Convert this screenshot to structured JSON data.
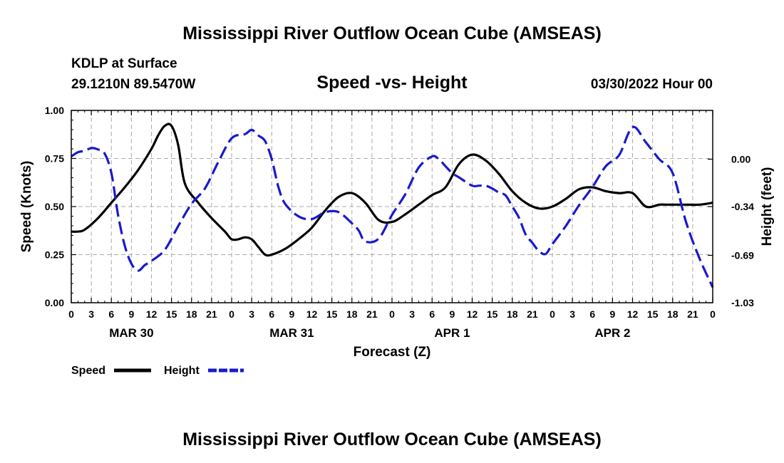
{
  "chart_data": {
    "type": "line",
    "title": "Mississippi River Outflow Ocean Cube (AMSEAS)",
    "footer_title": "Mississippi River Outflow Ocean Cube (AMSEAS)",
    "station": "KDLP at Surface",
    "location": "29.1210N  89.5470W",
    "subtitle": "Speed -vs- Height",
    "run_time": "03/30/2022 Hour 00",
    "xlabel": "Forecast (Z)",
    "ylabel_left": "Speed (Knots)",
    "ylabel_right": "Height (feet)",
    "x_range_hours": [
      0,
      96
    ],
    "ylim_left": [
      0,
      1.0
    ],
    "ylim_right": [
      -1.03,
      0.35
    ],
    "yticks_left": [
      "0.00",
      "0.25",
      "0.50",
      "0.75",
      "1.00"
    ],
    "yticks_right": [
      "-1.03",
      "-0.69",
      "-0.34",
      "0.00"
    ],
    "yticks_right_values": [
      -1.03,
      -0.69,
      -0.34,
      0.0
    ],
    "xtick_labels": [
      "0",
      "3",
      "6",
      "9",
      "12",
      "15",
      "18",
      "21",
      "0",
      "3",
      "6",
      "9",
      "12",
      "15",
      "18",
      "21",
      "0",
      "3",
      "6",
      "9",
      "12",
      "15",
      "18",
      "21",
      "0",
      "3",
      "6",
      "9",
      "12",
      "15",
      "18",
      "21",
      "0"
    ],
    "date_labels": [
      {
        "label": "MAR 30",
        "hour": 9
      },
      {
        "label": "MAR 31",
        "hour": 33
      },
      {
        "label": "APR 1",
        "hour": 57
      },
      {
        "label": "APR 2",
        "hour": 81
      }
    ],
    "grid": true,
    "legend": [
      {
        "name": "Speed",
        "color": "#000000",
        "style": "solid"
      },
      {
        "name": "Height",
        "color": "#1a1acc",
        "style": "dashed"
      }
    ],
    "series": [
      {
        "name": "Speed",
        "axis": "left",
        "color": "#000000",
        "x": [
          0,
          1,
          2,
          4,
          6,
          8,
          10,
          12,
          13,
          14,
          15,
          16,
          17,
          19,
          21,
          23,
          24,
          25,
          26,
          27,
          28,
          29,
          30,
          32,
          34,
          36,
          38,
          40,
          42,
          44,
          46,
          48,
          50,
          52,
          54,
          56,
          58,
          60,
          62,
          64,
          66,
          68,
          70,
          72,
          74,
          76,
          78,
          80,
          82,
          84,
          86,
          88,
          89,
          90,
          92,
          94,
          96
        ],
        "values": [
          0.37,
          0.37,
          0.38,
          0.44,
          0.52,
          0.6,
          0.69,
          0.8,
          0.87,
          0.92,
          0.92,
          0.82,
          0.62,
          0.52,
          0.44,
          0.37,
          0.33,
          0.33,
          0.34,
          0.33,
          0.29,
          0.25,
          0.25,
          0.28,
          0.33,
          0.39,
          0.48,
          0.55,
          0.57,
          0.52,
          0.43,
          0.42,
          0.46,
          0.51,
          0.56,
          0.6,
          0.72,
          0.77,
          0.74,
          0.67,
          0.58,
          0.52,
          0.49,
          0.5,
          0.54,
          0.59,
          0.6,
          0.58,
          0.57,
          0.57,
          0.5,
          0.51,
          0.51,
          0.51,
          0.51,
          0.51,
          0.52
        ]
      },
      {
        "name": "Height",
        "axis": "right",
        "color": "#1a1acc",
        "x": [
          0,
          1,
          2,
          3,
          4,
          5,
          6,
          7,
          8,
          9,
          10,
          11,
          12,
          14,
          16,
          18,
          20,
          22,
          24,
          26,
          27,
          28,
          29,
          30,
          31,
          32,
          34,
          36,
          38,
          40,
          42,
          43,
          44,
          46,
          48,
          50,
          52,
          54,
          55,
          56,
          57,
          58,
          60,
          61,
          62,
          63,
          64,
          65,
          66,
          67,
          68,
          69,
          70,
          71,
          72,
          74,
          76,
          78,
          80,
          82,
          84,
          86,
          88,
          90,
          92,
          94,
          96
        ],
        "values": [
          0.02,
          0.05,
          0.06,
          0.08,
          0.07,
          0.04,
          -0.1,
          -0.4,
          -0.62,
          -0.75,
          -0.8,
          -0.76,
          -0.73,
          -0.65,
          -0.48,
          -0.32,
          -0.21,
          -0.02,
          0.15,
          0.18,
          0.21,
          0.17,
          0.13,
          0.0,
          -0.2,
          -0.32,
          -0.41,
          -0.43,
          -0.38,
          -0.38,
          -0.46,
          -0.51,
          -0.59,
          -0.57,
          -0.4,
          -0.25,
          -0.06,
          0.02,
          0.0,
          -0.05,
          -0.1,
          -0.13,
          -0.19,
          -0.19,
          -0.19,
          -0.21,
          -0.24,
          -0.26,
          -0.34,
          -0.42,
          -0.54,
          -0.6,
          -0.66,
          -0.68,
          -0.61,
          -0.48,
          -0.33,
          -0.2,
          -0.05,
          0.03,
          0.23,
          0.12,
          0.0,
          -0.1,
          -0.45,
          -0.71,
          -0.92
        ]
      }
    ]
  }
}
